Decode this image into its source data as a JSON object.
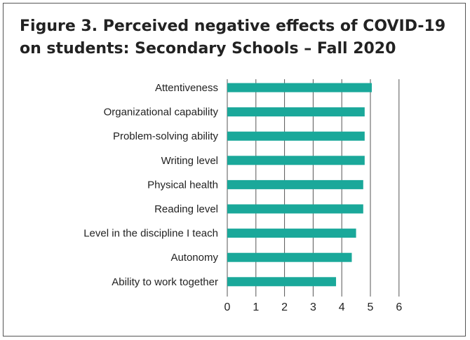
{
  "title_lines": [
    "Figure 3. Perceived negative effects of COVID-19",
    "on students: Secondary Schools – Fall 2020"
  ],
  "chart_data": {
    "type": "bar",
    "orientation": "horizontal",
    "title": "Figure 3. Perceived negative effects of COVID-19 on students: Secondary Schools – Fall 2020",
    "categories": [
      "Attentiveness",
      "Organizational capability",
      "Problem-solving ability",
      "Writing level",
      "Physical health",
      "Reading level",
      "Level in the discipline I teach",
      "Autonomy",
      "Ability to work together"
    ],
    "values": [
      5.05,
      4.8,
      4.8,
      4.8,
      4.75,
      4.75,
      4.5,
      4.35,
      3.8
    ],
    "xlim": [
      0,
      6
    ],
    "xticks": [
      "0",
      "1",
      "2",
      "3",
      "4",
      "5",
      "6"
    ],
    "grid": "vertical",
    "bar_color": "#1aa89a",
    "grid_color": "#555555"
  }
}
